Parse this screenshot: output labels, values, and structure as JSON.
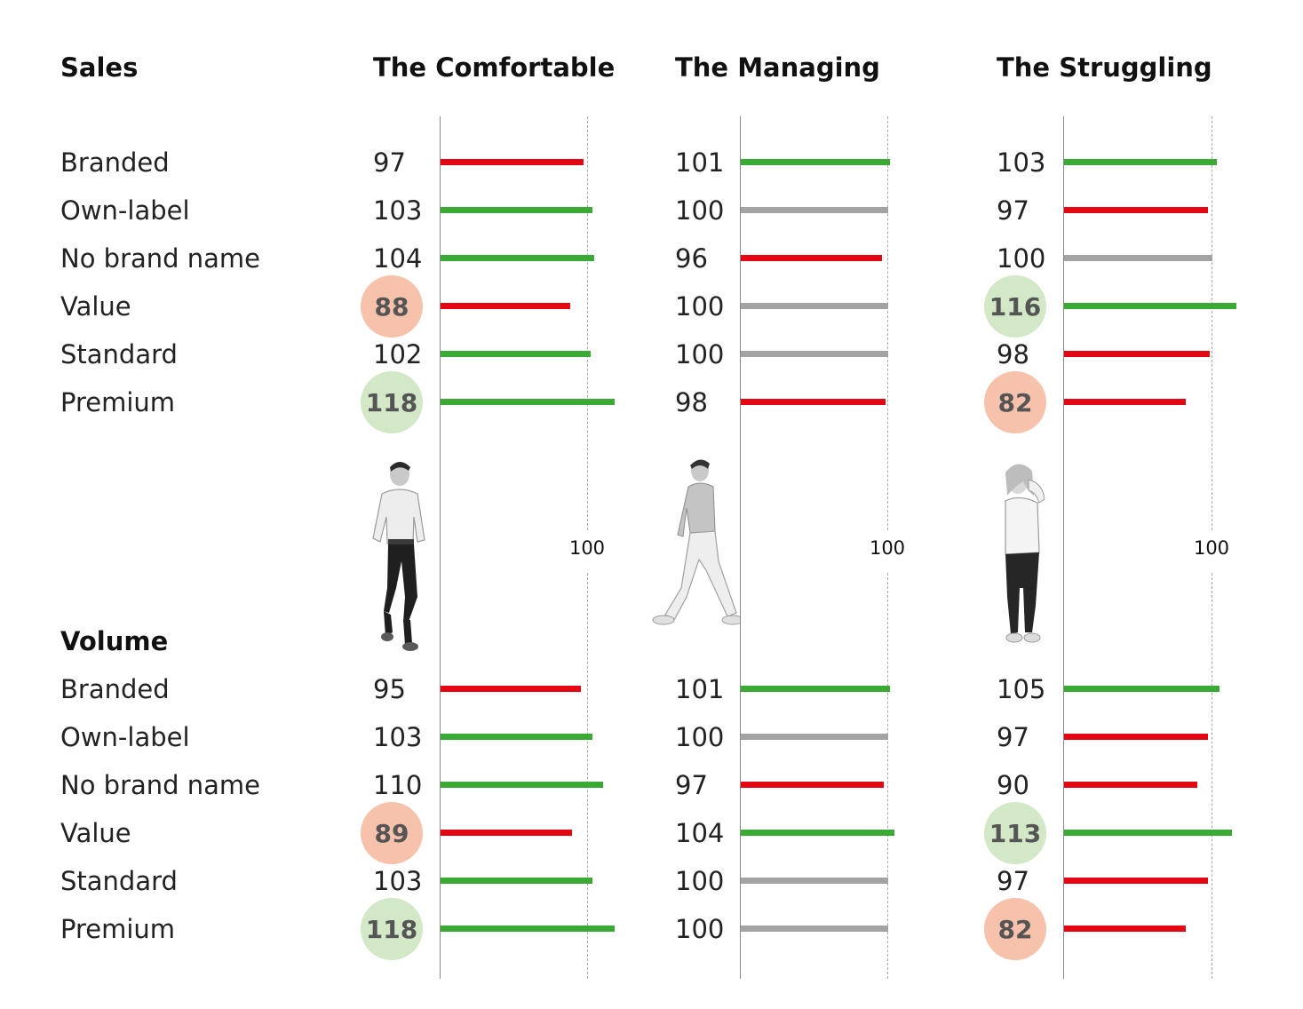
{
  "chart_data": {
    "type": "bar",
    "orientation": "horizontal",
    "reference_value": 100,
    "reference_label": "100",
    "colors": {
      "above": "#3aaa35",
      "below": "#e30613",
      "equal": "#a3a3a3",
      "highlight_high": "#d3e8c7",
      "highlight_low": "#f7c2ab"
    },
    "groups": [
      "The Comfortable",
      "The Managing",
      "The Struggling"
    ],
    "categories": [
      "Branded",
      "Own-label",
      "No brand name",
      "Value",
      "Standard",
      "Premium"
    ],
    "sections": [
      {
        "title": "Sales",
        "series": [
          {
            "group": "The Comfortable",
            "values": [
              97,
              103,
              104,
              88,
              102,
              118
            ],
            "highlight": [
              null,
              null,
              null,
              "low",
              null,
              "high"
            ]
          },
          {
            "group": "The Managing",
            "values": [
              101,
              100,
              96,
              100,
              100,
              98
            ],
            "highlight": [
              null,
              null,
              null,
              null,
              null,
              null
            ]
          },
          {
            "group": "The Struggling",
            "values": [
              103,
              97,
              100,
              116,
              98,
              82
            ],
            "highlight": [
              null,
              null,
              null,
              "high",
              null,
              "low"
            ]
          }
        ]
      },
      {
        "title": "Volume",
        "series": [
          {
            "group": "The Comfortable",
            "values": [
              95,
              103,
              110,
              89,
              103,
              118
            ],
            "highlight": [
              null,
              null,
              null,
              "low",
              null,
              "high"
            ]
          },
          {
            "group": "The Managing",
            "values": [
              101,
              100,
              97,
              104,
              100,
              100
            ],
            "highlight": [
              null,
              null,
              null,
              null,
              null,
              null
            ]
          },
          {
            "group": "The Struggling",
            "values": [
              105,
              97,
              90,
              113,
              97,
              82
            ],
            "highlight": [
              null,
              null,
              null,
              "high",
              null,
              "low"
            ]
          }
        ]
      }
    ]
  }
}
